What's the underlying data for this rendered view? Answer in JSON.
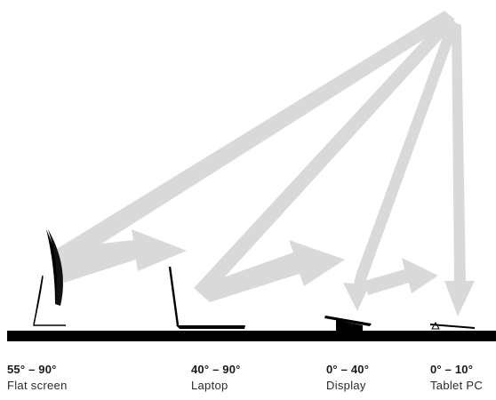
{
  "devices": [
    {
      "range": "55° – 90°",
      "name": "Flat screen"
    },
    {
      "range": "40° – 90°",
      "name": "Laptop"
    },
    {
      "range": "0° – 40°",
      "name": "Display"
    },
    {
      "range": "0° – 10°",
      "name": "Tablet PC"
    }
  ],
  "colors": {
    "ray": "#d9d9d9",
    "ground": "#000000",
    "text": "#1a1a1a"
  }
}
